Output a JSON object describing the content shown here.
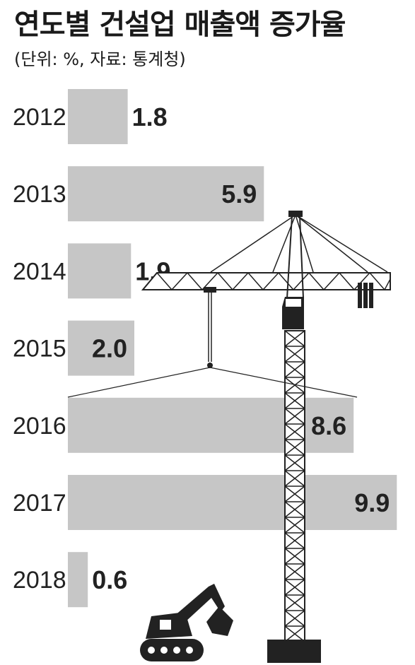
{
  "chart_data": {
    "type": "bar",
    "orientation": "horizontal",
    "title": "연도별 건설업 매출액 증가율",
    "subtitle": "(단위: %, 자료: 통계청)",
    "categories": [
      "2012",
      "2013",
      "2014",
      "2015",
      "2016",
      "2017",
      "2018"
    ],
    "values": [
      1.8,
      5.9,
      1.9,
      2.0,
      8.6,
      9.9,
      0.6
    ],
    "value_labels": [
      "1.8",
      "5.9",
      "1.9",
      "2.0",
      "8.6",
      "9.9",
      "0.6"
    ],
    "xlim": [
      0,
      10
    ],
    "grid": false,
    "legend": "none",
    "bar_color": "#c6c6c6",
    "decoration": [
      "tower-crane-icon",
      "excavator-icon"
    ]
  }
}
